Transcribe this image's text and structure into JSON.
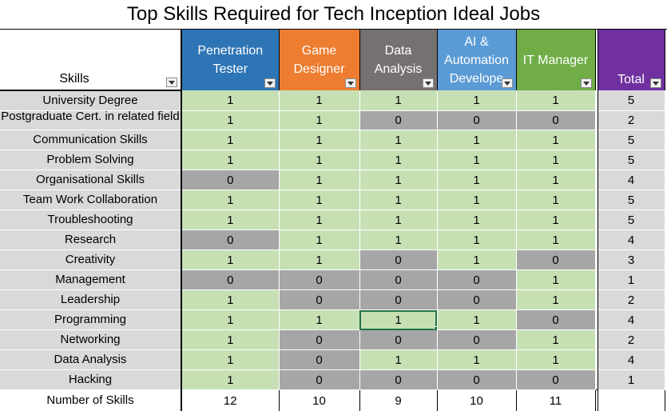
{
  "title": "Top Skills Required for Tech Inception Ideal Jobs",
  "headers": {
    "skills": "Skills",
    "total": "Total",
    "jobs": [
      {
        "label": "Penetration Tester",
        "color": "#2e75b6"
      },
      {
        "label": "Game Designer",
        "color": "#ed7d31"
      },
      {
        "label": "Data Analysis",
        "color": "#767171"
      },
      {
        "label": "AI & Automation Develope",
        "color": "#5b9bd5"
      },
      {
        "label": "IT Manager",
        "color": "#70ad47"
      }
    ],
    "total_color": "#7030a0"
  },
  "rows": [
    {
      "skill": "University Degree",
      "values": [
        1,
        1,
        1,
        1,
        1
      ],
      "total": 5
    },
    {
      "skill": "Postgraduate Cert. in related field",
      "values": [
        1,
        1,
        0,
        0,
        0
      ],
      "total": 2
    },
    {
      "skill": "Communication Skills",
      "values": [
        1,
        1,
        1,
        1,
        1
      ],
      "total": 5
    },
    {
      "skill": "Problem Solving",
      "values": [
        1,
        1,
        1,
        1,
        1
      ],
      "total": 5
    },
    {
      "skill": "Organisational Skills",
      "values": [
        0,
        1,
        1,
        1,
        1
      ],
      "total": 4
    },
    {
      "skill": "Team Work Collaboration",
      "values": [
        1,
        1,
        1,
        1,
        1
      ],
      "total": 5
    },
    {
      "skill": "Troubleshooting",
      "values": [
        1,
        1,
        1,
        1,
        1
      ],
      "total": 5
    },
    {
      "skill": "Research",
      "values": [
        0,
        1,
        1,
        1,
        1
      ],
      "total": 4
    },
    {
      "skill": "Creativity",
      "values": [
        1,
        1,
        0,
        1,
        0
      ],
      "total": 3
    },
    {
      "skill": "Management",
      "values": [
        0,
        0,
        0,
        0,
        1
      ],
      "total": 1
    },
    {
      "skill": "Leadership",
      "values": [
        1,
        0,
        0,
        0,
        1
      ],
      "total": 2
    },
    {
      "skill": "Programming",
      "values": [
        1,
        1,
        1,
        1,
        0
      ],
      "total": 4
    },
    {
      "skill": "Networking",
      "values": [
        1,
        0,
        0,
        0,
        1
      ],
      "total": 2
    },
    {
      "skill": "Data Analysis",
      "values": [
        1,
        0,
        1,
        1,
        1
      ],
      "total": 4
    },
    {
      "skill": "Hacking",
      "values": [
        1,
        0,
        0,
        0,
        0
      ],
      "total": 1
    }
  ],
  "footer": {
    "label": "Number of Skills",
    "values": [
      12,
      10,
      9,
      10,
      11
    ]
  },
  "selected_cell": {
    "row": "Programming",
    "column": "Data Analysis"
  },
  "colors": {
    "yes": "#c6e0b4",
    "no": "#a6a6a6",
    "skill_bg": "#d9d9d9",
    "selection": "#217346"
  }
}
